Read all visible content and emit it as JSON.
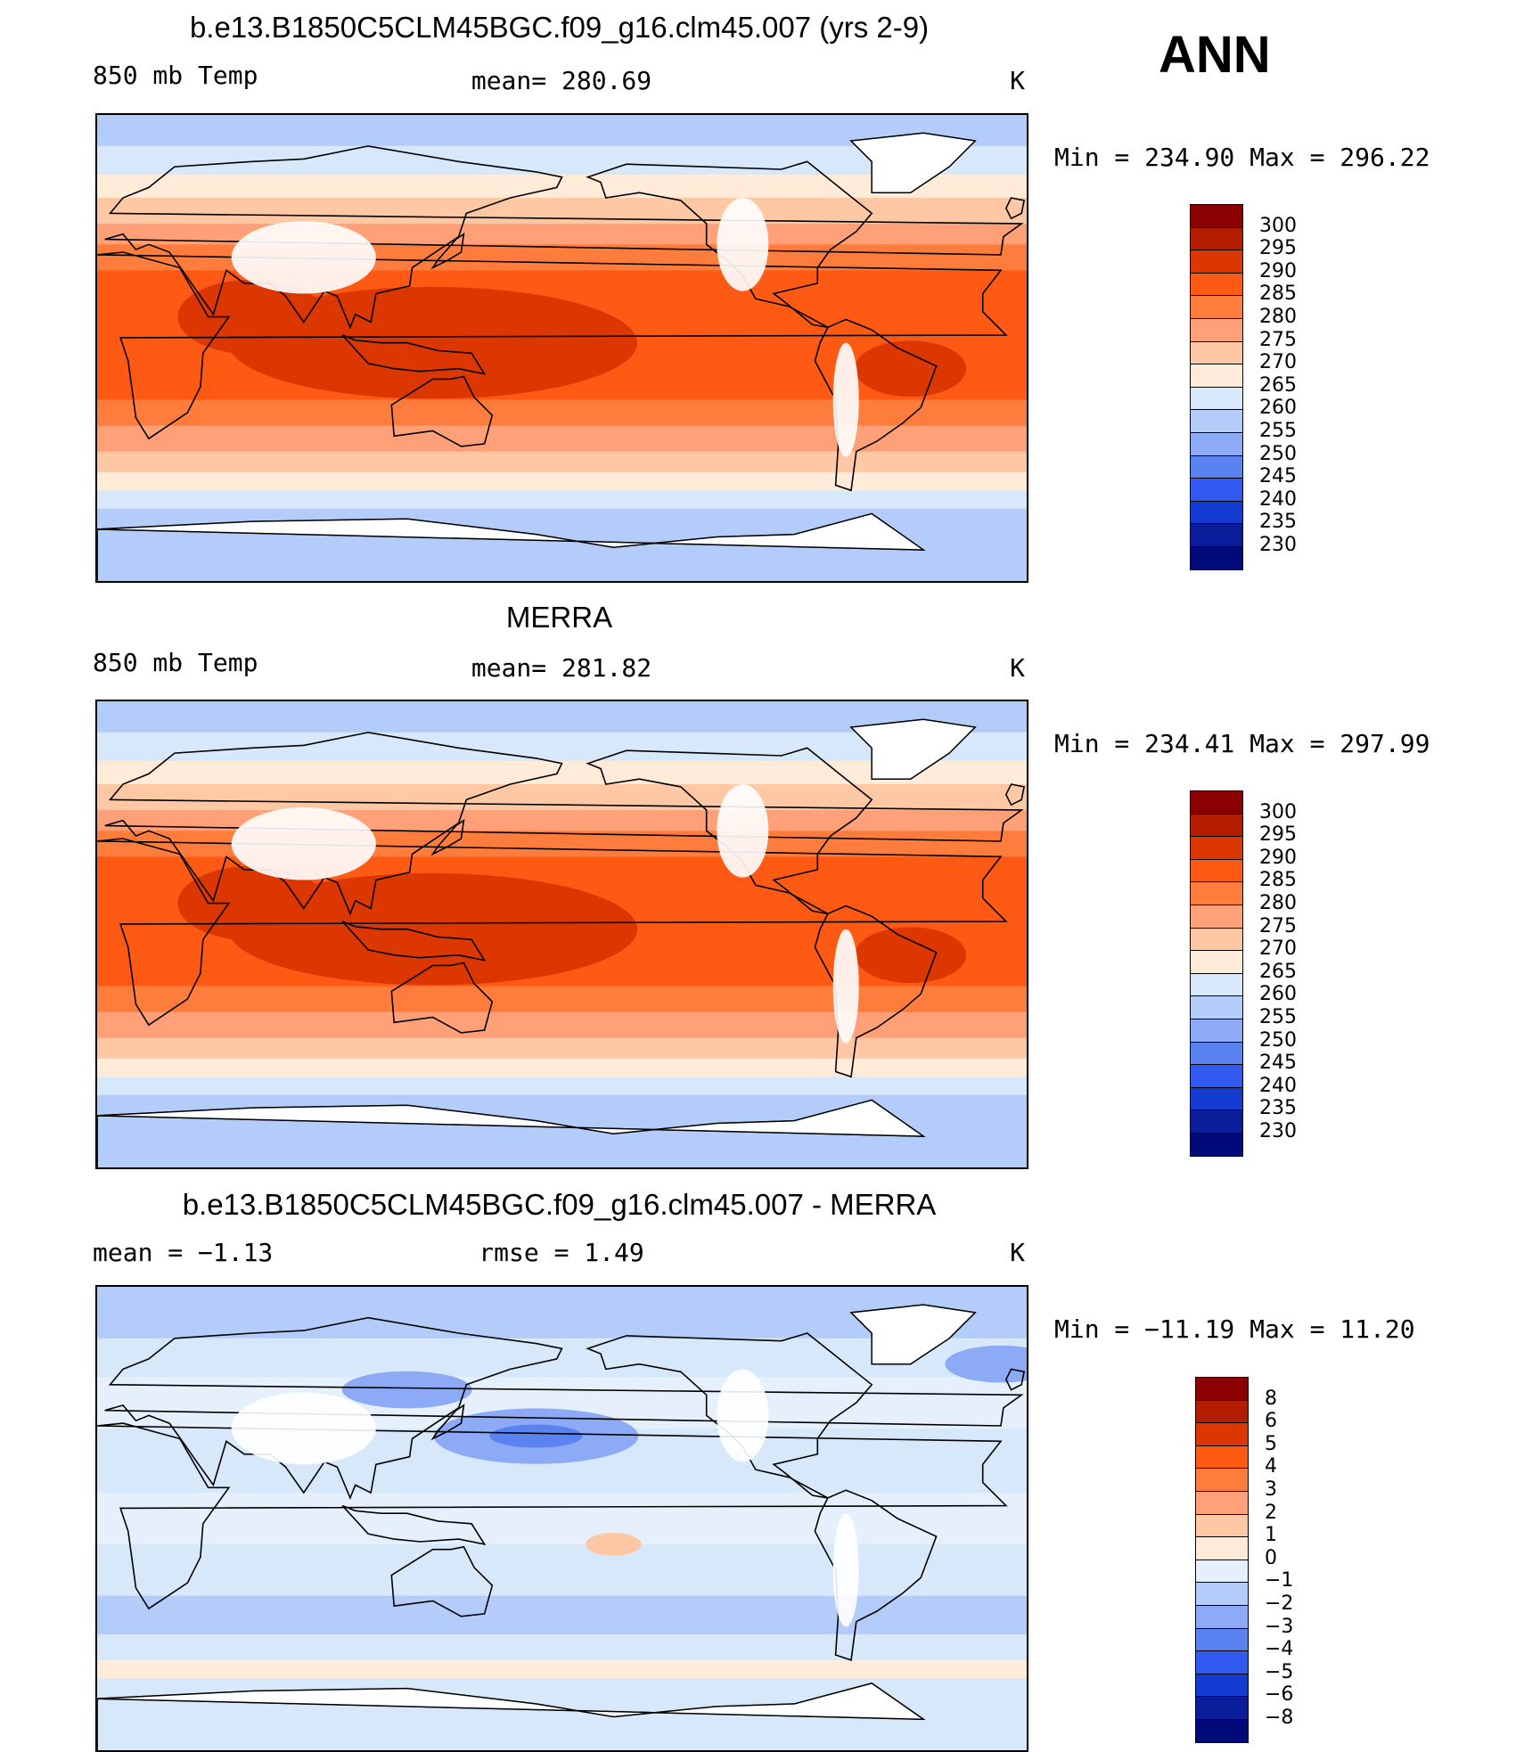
{
  "season": "ANN",
  "panels": [
    {
      "title": "b.e13.B1850C5CLM45BGC.f09_g16.clm45.007 (yrs 2-9)",
      "left_label": "850 mb Temp",
      "center_label": "mean=  280.69",
      "unit": "K",
      "minmax": "Min  =  234.90  Max  =  296.22",
      "kind": "abs",
      "levels": [
        "300",
        "295",
        "290",
        "285",
        "280",
        "275",
        "270",
        "265",
        "260",
        "255",
        "250",
        "245",
        "240",
        "235",
        "230"
      ],
      "colors": [
        "#8b0000",
        "#b41c00",
        "#dc3700",
        "#ff5a14",
        "#ff7d3c",
        "#ffa078",
        "#ffc8a5",
        "#ffebd7",
        "#d7e8fa",
        "#b4ccfa",
        "#8caaf5",
        "#5a82f0",
        "#325af0",
        "#143cd2",
        "#0a1e9b",
        "#000a78"
      ]
    },
    {
      "title": "MERRA",
      "left_label": "850 mb Temp",
      "center_label": "mean=  281.82",
      "unit": "K",
      "minmax": "Min  =  234.41  Max  =  297.99",
      "kind": "abs",
      "levels": [
        "300",
        "295",
        "290",
        "285",
        "280",
        "275",
        "270",
        "265",
        "260",
        "255",
        "250",
        "245",
        "240",
        "235",
        "230"
      ],
      "colors": [
        "#8b0000",
        "#b41c00",
        "#dc3700",
        "#ff5a14",
        "#ff7d3c",
        "#ffa078",
        "#ffc8a5",
        "#ffebd7",
        "#d7e8fa",
        "#b4ccfa",
        "#8caaf5",
        "#5a82f0",
        "#325af0",
        "#143cd2",
        "#0a1e9b",
        "#000a78"
      ]
    },
    {
      "title": "b.e13.B1850C5CLM45BGC.f09_g16.clm45.007 - MERRA",
      "left_label": "mean =    −1.13",
      "center_label": "rmse =      1.49",
      "unit": "K",
      "minmax": "Min  =  −11.19  Max  =    11.20",
      "kind": "diff",
      "levels": [
        "8",
        "6",
        "5",
        "4",
        "3",
        "2",
        "1",
        "0",
        "−1",
        "−2",
        "−3",
        "−4",
        "−5",
        "−6",
        "−8"
      ],
      "colors": [
        "#8b0000",
        "#b41c00",
        "#dc3700",
        "#ff5a14",
        "#ff7d3c",
        "#ffa078",
        "#ffc8a5",
        "#ffebd7",
        "#e6f0fc",
        "#b4ccfa",
        "#8caaf5",
        "#5a82f0",
        "#325af0",
        "#143cd2",
        "#0a1e9b",
        "#000a78"
      ]
    }
  ]
}
